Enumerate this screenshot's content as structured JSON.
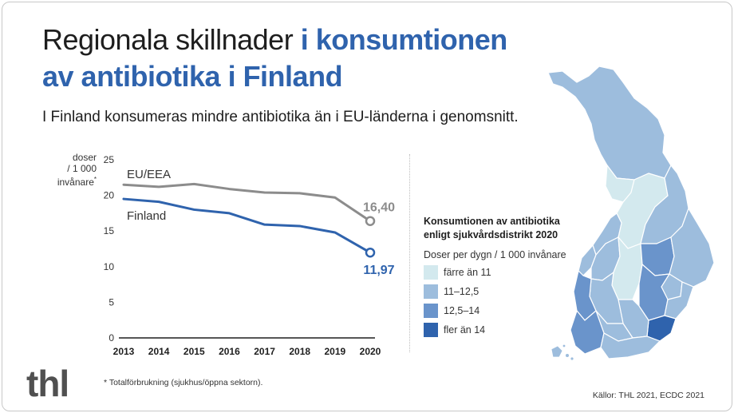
{
  "title": {
    "part1": "Regionala skillnader ",
    "part2": "i konsumtionen",
    "part3": "av antibiotika i Finland"
  },
  "subtitle": "I Finland konsumeras mindre antibiotika än i EU-länderna i genomsnitt.",
  "chart_data": {
    "type": "line",
    "ylabel_lines": [
      "doser",
      "/ 1 000",
      "invånare"
    ],
    "ylabel_mark": "*",
    "x": [
      2013,
      2014,
      2015,
      2016,
      2017,
      2018,
      2019,
      2020
    ],
    "ylim": [
      0,
      25
    ],
    "yticks": [
      0,
      5,
      10,
      15,
      20,
      25
    ],
    "grid": false,
    "series": [
      {
        "name": "EU/EEA",
        "color": "#8c8c8c",
        "values": [
          21.5,
          21.2,
          21.6,
          20.9,
          20.4,
          20.3,
          19.7,
          16.4
        ],
        "end_label": "16,40"
      },
      {
        "name": "Finland",
        "color": "#2f63ad",
        "values": [
          19.5,
          19.1,
          18.0,
          17.5,
          15.9,
          15.7,
          14.8,
          11.97
        ],
        "end_label": "11,97"
      }
    ]
  },
  "legend": {
    "title_lines": [
      "Konsumtionen av antibiotika",
      "enligt sjukvårdsdistrikt 2020"
    ],
    "unit": "Doser per dygn / 1 000 invånare",
    "items": [
      {
        "label": "färre än 11",
        "color": "#d3e9ee"
      },
      {
        "label": "11–12,5",
        "color": "#9dbddd"
      },
      {
        "label": "12,5–14",
        "color": "#6a94cb"
      },
      {
        "label": "fler än 14",
        "color": "#2f63ad"
      }
    ]
  },
  "logo": "thl",
  "footnote": "* Totalförbrukning (sjukhus/öppna sektorn).",
  "source": "Källor: THL 2021, ECDC 2021"
}
